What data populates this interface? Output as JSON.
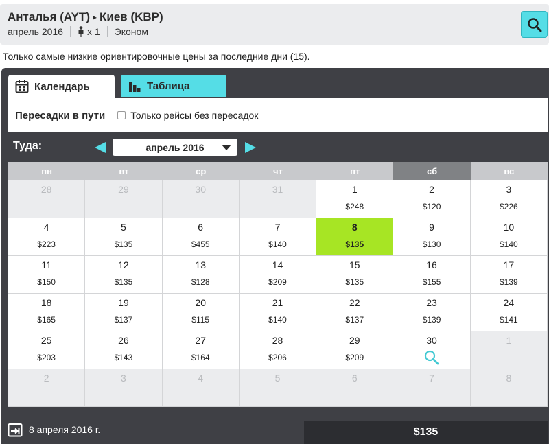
{
  "route": {
    "from": "Анталья (AYT)",
    "arrow": "▸",
    "to": "Киев (KBP)"
  },
  "meta": {
    "month": "апрель 2016",
    "passengers": "x 1",
    "cabin": "Эконом"
  },
  "icons": {
    "search": "search-icon",
    "person": "person-icon",
    "calendar": "calendar-icon",
    "table": "bar-chart-icon",
    "depart": "calendar-depart-icon"
  },
  "notice": "Только самые низкие ориентировочные цены за последние дни (15).",
  "tabs": [
    {
      "label": "Календарь",
      "active": true
    },
    {
      "label": "Таблица",
      "active": false
    }
  ],
  "filters": {
    "title": "Пересадки в пути",
    "nonstop_label": "Только рейсы без пересадок",
    "nonstop_checked": false
  },
  "month_nav": {
    "label": "Туда:",
    "selected_month": "апрель 2016"
  },
  "weekdays": [
    "пн",
    "вт",
    "ср",
    "чт",
    "пт",
    "сб",
    "вс"
  ],
  "days": [
    {
      "day": "28",
      "price": "",
      "out": true
    },
    {
      "day": "29",
      "price": "",
      "out": true
    },
    {
      "day": "30",
      "price": "",
      "out": true
    },
    {
      "day": "31",
      "price": "",
      "out": true
    },
    {
      "day": "1",
      "price": "$248"
    },
    {
      "day": "2",
      "price": "$120"
    },
    {
      "day": "3",
      "price": "$226"
    },
    {
      "day": "4",
      "price": "$223"
    },
    {
      "day": "5",
      "price": "$135"
    },
    {
      "day": "6",
      "price": "$455"
    },
    {
      "day": "7",
      "price": "$140"
    },
    {
      "day": "8",
      "price": "$135",
      "selected": true
    },
    {
      "day": "9",
      "price": "$130"
    },
    {
      "day": "10",
      "price": "$140"
    },
    {
      "day": "11",
      "price": "$150"
    },
    {
      "day": "12",
      "price": "$135"
    },
    {
      "day": "13",
      "price": "$128"
    },
    {
      "day": "14",
      "price": "$209"
    },
    {
      "day": "15",
      "price": "$135"
    },
    {
      "day": "16",
      "price": "$155"
    },
    {
      "day": "17",
      "price": "$139"
    },
    {
      "day": "18",
      "price": "$165"
    },
    {
      "day": "19",
      "price": "$137"
    },
    {
      "day": "20",
      "price": "$115"
    },
    {
      "day": "21",
      "price": "$140"
    },
    {
      "day": "22",
      "price": "$137"
    },
    {
      "day": "23",
      "price": "$139"
    },
    {
      "day": "24",
      "price": "$141"
    },
    {
      "day": "25",
      "price": "$203"
    },
    {
      "day": "26",
      "price": "$143"
    },
    {
      "day": "27",
      "price": "$164"
    },
    {
      "day": "28",
      "price": "$206"
    },
    {
      "day": "29",
      "price": "$209"
    },
    {
      "day": "30",
      "price": "",
      "search": true
    },
    {
      "day": "1",
      "price": "",
      "out": true
    },
    {
      "day": "2",
      "price": "",
      "out": true
    },
    {
      "day": "3",
      "price": "",
      "out": true
    },
    {
      "day": "4",
      "price": "",
      "out": true
    },
    {
      "day": "5",
      "price": "",
      "out": true
    },
    {
      "day": "6",
      "price": "",
      "out": true
    },
    {
      "day": "7",
      "price": "",
      "out": true
    },
    {
      "day": "8",
      "price": "",
      "out": true
    }
  ],
  "footer": {
    "date": "8 апреля 2016 г.",
    "price": "$135"
  },
  "colors": {
    "accent": "#55dde6",
    "selected": "#a7e524",
    "panel": "#3f4045",
    "weekend_header": "#808285"
  }
}
